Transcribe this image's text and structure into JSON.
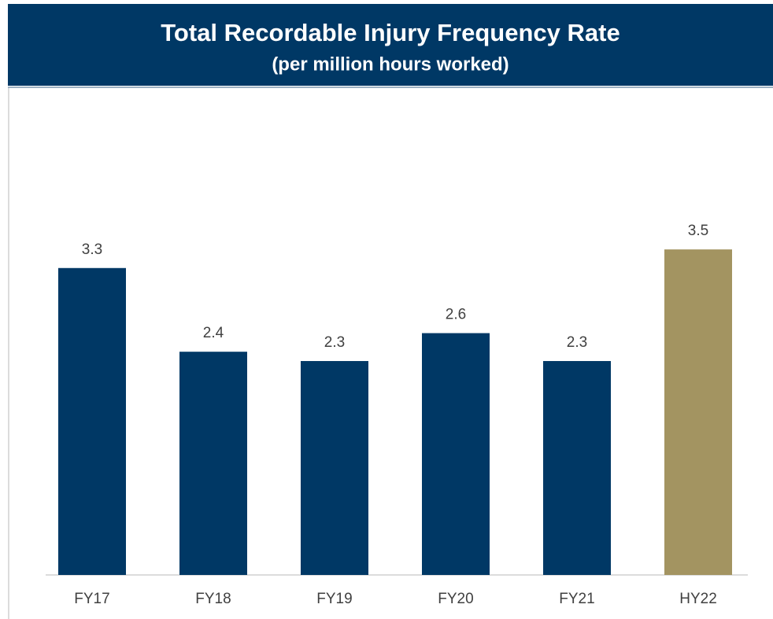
{
  "chart_data": {
    "type": "bar",
    "title": "Total Recordable Injury Frequency Rate",
    "subtitle": "(per million hours worked)",
    "categories": [
      "FY17",
      "FY18",
      "FY19",
      "FY20",
      "FY21",
      "HY22"
    ],
    "values": [
      3.3,
      2.4,
      2.3,
      2.6,
      2.3,
      3.5
    ],
    "colors": [
      "#003865",
      "#003865",
      "#003865",
      "#003865",
      "#003865",
      "#a39461"
    ],
    "ylim": [
      0,
      4
    ],
    "grid": false
  }
}
